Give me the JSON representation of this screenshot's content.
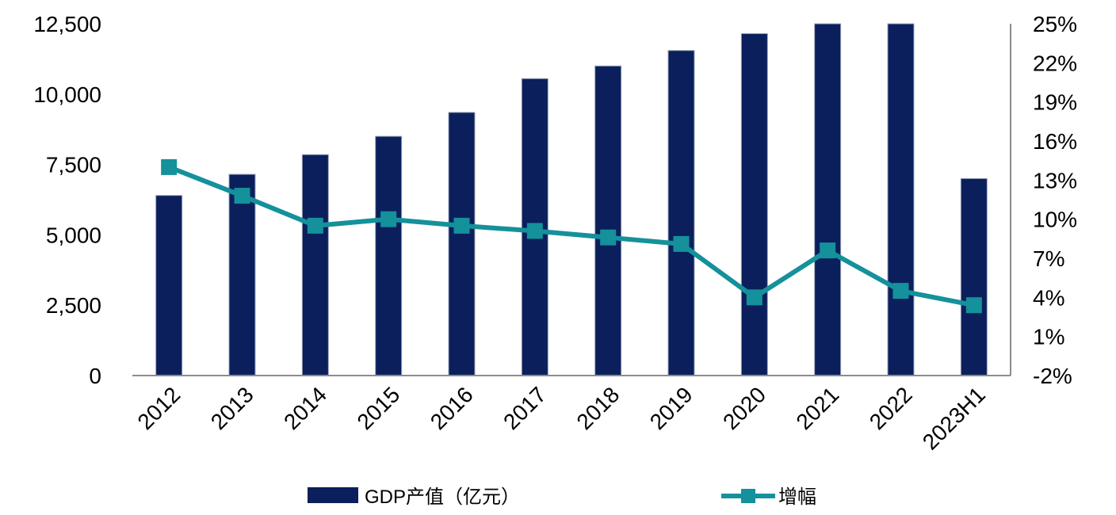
{
  "chart_data": {
    "type": "bar",
    "categories": [
      "2012",
      "2013",
      "2014",
      "2015",
      "2016",
      "2017",
      "2018",
      "2019",
      "2020",
      "2021",
      "2022",
      "2023H1"
    ],
    "series": [
      {
        "name": "GDP产值（亿元）",
        "type": "bar",
        "axis": "left",
        "color": "#0b1f5c",
        "values": [
          6400,
          7150,
          7850,
          8500,
          9350,
          10550,
          11000,
          11550,
          12150,
          12500,
          12500,
          7000
        ]
      },
      {
        "name": "增幅",
        "type": "line",
        "axis": "right",
        "color": "#14919b",
        "values": [
          14.0,
          11.8,
          9.5,
          10.0,
          9.5,
          9.1,
          8.6,
          8.1,
          4.0,
          7.6,
          4.5,
          3.4
        ]
      }
    ],
    "y_left": {
      "ylim": [
        0,
        12500
      ],
      "ticks": [
        "0",
        "2,500",
        "5,000",
        "7,500",
        "10,000",
        "12,500"
      ]
    },
    "y_right": {
      "ylim": [
        -2,
        25
      ],
      "ticks": [
        "-2%",
        "1%",
        "4%",
        "7%",
        "10%",
        "13%",
        "16%",
        "19%",
        "22%",
        "25%"
      ]
    },
    "grid": false,
    "legend_position": "bottom"
  }
}
